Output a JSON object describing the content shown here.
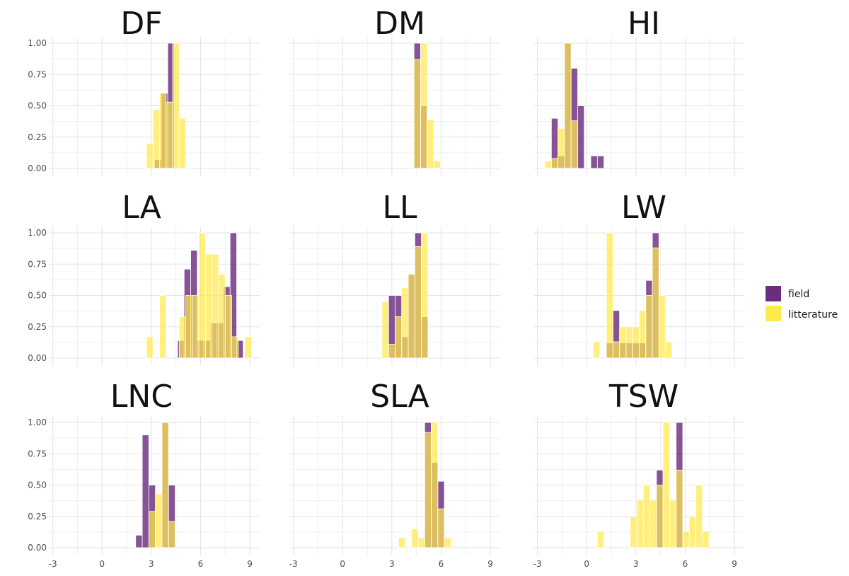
{
  "figure": {
    "type": "histogram-grid"
  },
  "legend": {
    "items": [
      {
        "label": "field",
        "color": "#6b2e7f"
      },
      {
        "label": "litterature",
        "color": "#ffe94d"
      }
    ]
  },
  "chart_data": [
    {
      "type": "bar",
      "title": "DF",
      "xlim": [
        -3.2,
        9.6
      ],
      "ylim": [
        0,
        1
      ],
      "xticks": [
        "-3",
        "0",
        "3",
        "6",
        "9"
      ],
      "yticks": [
        "0.00",
        "0.25",
        "0.50",
        "0.75",
        "1.00"
      ],
      "bin_width": 0.4,
      "series": [
        {
          "name": "field",
          "bars": [
            [
              3.4,
              0.07
            ],
            [
              3.8,
              0.6
            ],
            [
              4.2,
              1.0
            ]
          ]
        },
        {
          "name": "litterature",
          "bars": [
            [
              2.9,
              0.2
            ],
            [
              3.3,
              0.47
            ],
            [
              3.7,
              0.6
            ],
            [
              4.1,
              0.53
            ],
            [
              4.5,
              1.0
            ],
            [
              4.9,
              0.4
            ]
          ]
        }
      ]
    },
    {
      "type": "bar",
      "title": "DM",
      "xlim": [
        -3.2,
        9.6
      ],
      "ylim": [
        0,
        1
      ],
      "xticks": [
        "-3",
        "0",
        "3",
        "6",
        "9"
      ],
      "yticks": [
        "0.00",
        "0.25",
        "0.50",
        "0.75",
        "1.00"
      ],
      "bin_width": 0.4,
      "series": [
        {
          "name": "field",
          "bars": [
            [
              4.55,
              1.0
            ],
            [
              4.95,
              0.5
            ]
          ]
        },
        {
          "name": "litterature",
          "bars": [
            [
              4.55,
              0.87
            ],
            [
              4.95,
              1.0
            ],
            [
              5.35,
              0.39
            ],
            [
              5.75,
              0.06
            ]
          ]
        }
      ]
    },
    {
      "type": "bar",
      "title": "HI",
      "xlim": [
        -3.2,
        9.6
      ],
      "ylim": [
        0,
        1
      ],
      "xticks": [
        "-3",
        "0",
        "3",
        "6",
        "9"
      ],
      "yticks": [
        "0.00",
        "0.25",
        "0.50",
        "0.75",
        "1.00"
      ],
      "bin_width": 0.4,
      "series": [
        {
          "name": "field",
          "bars": [
            [
              -1.95,
              0.4
            ],
            [
              -1.55,
              0.1
            ],
            [
              -1.15,
              1.0
            ],
            [
              -0.75,
              0.8
            ],
            [
              -0.35,
              0.5
            ],
            [
              0.45,
              0.1
            ],
            [
              0.85,
              0.1
            ]
          ]
        },
        {
          "name": "litterature",
          "bars": [
            [
              -2.35,
              0.06
            ],
            [
              -1.95,
              0.08
            ],
            [
              -1.55,
              0.32
            ],
            [
              -1.15,
              1.0
            ],
            [
              -0.75,
              0.38
            ]
          ]
        }
      ]
    },
    {
      "type": "bar",
      "title": "LA",
      "xlim": [
        -3.2,
        9.6
      ],
      "ylim": [
        0,
        1
      ],
      "xticks": [
        "-3",
        "0",
        "3",
        "6",
        "9"
      ],
      "yticks": [
        "0.00",
        "0.25",
        "0.50",
        "0.75",
        "1.00"
      ],
      "bin_width": 0.4,
      "series": [
        {
          "name": "field",
          "bars": [
            [
              4.8,
              0.14
            ],
            [
              5.2,
              0.71
            ],
            [
              5.6,
              0.86
            ],
            [
              6.0,
              0.14
            ],
            [
              6.4,
              0.14
            ],
            [
              6.8,
              0.28
            ],
            [
              7.2,
              0.28
            ],
            [
              7.6,
              0.57
            ],
            [
              8.0,
              1.0
            ],
            [
              8.4,
              0.14
            ]
          ]
        },
        {
          "name": "litterature",
          "bars": [
            [
              2.9,
              0.17
            ],
            [
              3.7,
              0.5
            ],
            [
              4.9,
              0.33
            ],
            [
              5.3,
              0.5
            ],
            [
              5.7,
              0.5
            ],
            [
              6.1,
              1.0
            ],
            [
              6.5,
              0.83
            ],
            [
              6.9,
              0.83
            ],
            [
              7.3,
              0.67
            ],
            [
              7.7,
              0.5
            ],
            [
              8.1,
              0.17
            ],
            [
              8.9,
              0.17
            ]
          ]
        }
      ]
    },
    {
      "type": "bar",
      "title": "LL",
      "xlim": [
        -3.2,
        9.6
      ],
      "ylim": [
        0,
        1
      ],
      "xticks": [
        "-3",
        "0",
        "3",
        "6",
        "9"
      ],
      "yticks": [
        "0.00",
        "0.25",
        "0.50",
        "0.75",
        "1.00"
      ],
      "bin_width": 0.4,
      "series": [
        {
          "name": "field",
          "bars": [
            [
              3.0,
              0.5
            ],
            [
              3.4,
              0.5
            ],
            [
              3.8,
              0.17
            ],
            [
              4.2,
              0.67
            ],
            [
              4.6,
              1.0
            ],
            [
              5.0,
              0.33
            ]
          ]
        },
        {
          "name": "litterature",
          "bars": [
            [
              2.6,
              0.45
            ],
            [
              3.0,
              0.11
            ],
            [
              3.4,
              0.33
            ],
            [
              3.8,
              0.56
            ],
            [
              4.2,
              0.67
            ],
            [
              4.6,
              0.89
            ],
            [
              5.0,
              1.0
            ]
          ]
        }
      ]
    },
    {
      "type": "bar",
      "title": "LW",
      "xlim": [
        -3.2,
        9.6
      ],
      "ylim": [
        0,
        1
      ],
      "xticks": [
        "-3",
        "0",
        "3",
        "6",
        "9"
      ],
      "yticks": [
        "0.00",
        "0.25",
        "0.50",
        "0.75",
        "1.00"
      ],
      "bin_width": 0.4,
      "series": [
        {
          "name": "field",
          "bars": [
            [
              1.4,
              0.12
            ],
            [
              1.8,
              0.38
            ],
            [
              2.2,
              0.12
            ],
            [
              2.6,
              0.12
            ],
            [
              3.0,
              0.12
            ],
            [
              3.4,
              0.12
            ],
            [
              3.8,
              0.62
            ],
            [
              4.2,
              1.0
            ]
          ]
        },
        {
          "name": "litterature",
          "bars": [
            [
              0.6,
              0.13
            ],
            [
              1.4,
              1.0
            ],
            [
              1.8,
              0.13
            ],
            [
              2.2,
              0.25
            ],
            [
              2.6,
              0.25
            ],
            [
              3.0,
              0.25
            ],
            [
              3.4,
              0.38
            ],
            [
              3.8,
              0.5
            ],
            [
              4.2,
              0.88
            ],
            [
              4.6,
              0.5
            ],
            [
              5.0,
              0.13
            ]
          ]
        }
      ]
    },
    {
      "type": "bar",
      "title": "LNC",
      "xlim": [
        -3.2,
        9.6
      ],
      "ylim": [
        0,
        1
      ],
      "xticks": [
        "-3",
        "0",
        "3",
        "6",
        "9"
      ],
      "yticks": [
        "0.00",
        "0.25",
        "0.50",
        "0.75",
        "1.00"
      ],
      "bin_width": 0.4,
      "series": [
        {
          "name": "field",
          "bars": [
            [
              2.25,
              0.1
            ],
            [
              2.65,
              0.9
            ],
            [
              3.05,
              0.5
            ],
            [
              3.85,
              1.0
            ],
            [
              4.25,
              0.5
            ]
          ]
        },
        {
          "name": "litterature",
          "bars": [
            [
              3.05,
              0.29
            ],
            [
              3.45,
              0.43
            ],
            [
              3.85,
              1.0
            ],
            [
              4.25,
              0.21
            ]
          ]
        }
      ]
    },
    {
      "type": "bar",
      "title": "SLA",
      "xlim": [
        -3.2,
        9.6
      ],
      "ylim": [
        0,
        1
      ],
      "xticks": [
        "-3",
        "0",
        "3",
        "6",
        "9"
      ],
      "yticks": [
        "0.00",
        "0.25",
        "0.50",
        "0.75",
        "1.00"
      ],
      "bin_width": 0.4,
      "series": [
        {
          "name": "field",
          "bars": [
            [
              5.2,
              1.0
            ],
            [
              5.6,
              0.68
            ],
            [
              6.0,
              0.53
            ]
          ]
        },
        {
          "name": "litterature",
          "bars": [
            [
              3.6,
              0.08
            ],
            [
              4.4,
              0.15
            ],
            [
              4.8,
              0.08
            ],
            [
              5.2,
              0.92
            ],
            [
              5.6,
              1.0
            ],
            [
              6.0,
              0.31
            ],
            [
              6.4,
              0.08
            ]
          ]
        }
      ]
    },
    {
      "type": "bar",
      "title": "TSW",
      "xlim": [
        -3.2,
        9.6
      ],
      "ylim": [
        0,
        1
      ],
      "xticks": [
        "-3",
        "0",
        "3",
        "6",
        "9"
      ],
      "yticks": [
        "0.00",
        "0.25",
        "0.50",
        "0.75",
        "1.00"
      ],
      "bin_width": 0.4,
      "series": [
        {
          "name": "field",
          "bars": [
            [
              4.45,
              0.62
            ],
            [
              5.65,
              1.0
            ]
          ]
        },
        {
          "name": "litterature",
          "bars": [
            [
              0.85,
              0.13
            ],
            [
              2.85,
              0.25
            ],
            [
              3.25,
              0.38
            ],
            [
              3.65,
              0.5
            ],
            [
              4.05,
              0.38
            ],
            [
              4.45,
              0.5
            ],
            [
              4.85,
              1.0
            ],
            [
              5.25,
              0.38
            ],
            [
              5.65,
              0.62
            ],
            [
              6.05,
              0.13
            ],
            [
              6.45,
              0.25
            ],
            [
              6.85,
              0.5
            ],
            [
              7.25,
              0.13
            ]
          ]
        }
      ]
    }
  ]
}
